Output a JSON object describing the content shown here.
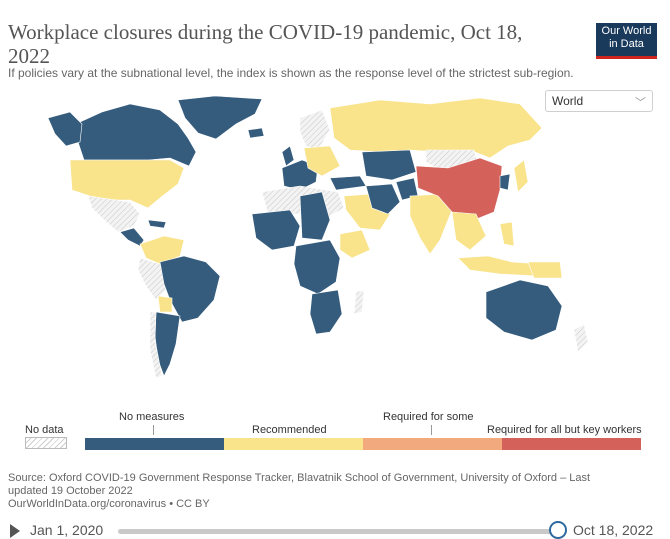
{
  "header": {
    "title": "Workplace closures during the COVID-19 pandemic, Oct 18, 2022",
    "subtitle": "If policies vary at the subnational level, the index is shown as the response level of the strictest sub-region.",
    "logo_line1": "Our World",
    "logo_line2": "in Data"
  },
  "region_select": {
    "value": "World"
  },
  "colors": {
    "no_measures": "#355c7d",
    "recommended": "#f9e38b",
    "required_some": "#f2a97e",
    "required_all": "#d5615b",
    "no_data": "#e9e9e9"
  },
  "legend": {
    "no_data": "No data",
    "no_measures": "No measures",
    "recommended": "Recommended",
    "required_some": "Required for some",
    "required_all": "Required for all but key workers"
  },
  "source": {
    "line1": "Source: Oxford COVID-19 Government Response Tracker, Blavatnik School of Government, University of Oxford – Last",
    "line2": "updated 19 October 2022",
    "line3": "OurWorldInData.org/coronavirus • CC BY"
  },
  "timeline": {
    "start": "Jan 1, 2020",
    "end": "Oct 18, 2022"
  }
}
